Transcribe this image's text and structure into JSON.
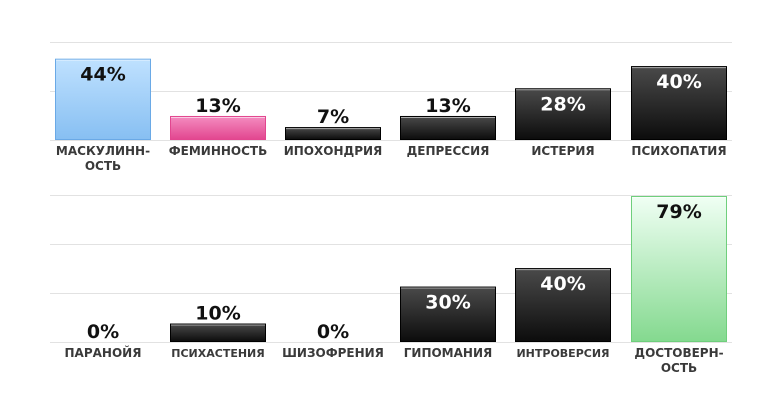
{
  "chart_data": [
    {
      "type": "bar",
      "categories": [
        "МАСКУЛИНН-\nОСТЬ",
        "ФЕМИННОСТЬ",
        "ИПОХОНДРИЯ",
        "ДЕПРЕССИЯ",
        "ИСТЕРИЯ",
        "ПСИХОПАТИЯ"
      ],
      "values": [
        44,
        13,
        7,
        13,
        28,
        40
      ],
      "value_labels": [
        "44%",
        "13%",
        "7%",
        "13%",
        "28%",
        "40%"
      ],
      "bar_styles": [
        "blue",
        "pink",
        "black",
        "black",
        "black",
        "black"
      ],
      "ylim": [
        0,
        100
      ],
      "grid": true
    },
    {
      "type": "bar",
      "categories": [
        "ПАРАНОЙЯ",
        "ПСИХАСТЕНИЯ",
        "ШИЗОФРЕНИЯ",
        "ГИПОМАНИЯ",
        "ИНТРОВЕРСИЯ",
        "ДОСТОВЕРН-\nОСТЬ"
      ],
      "values": [
        0,
        10,
        0,
        30,
        40,
        79
      ],
      "value_labels": [
        "0%",
        "10%",
        "0%",
        "30%",
        "40%",
        "79%"
      ],
      "bar_styles": [
        "black",
        "black",
        "black",
        "black",
        "black",
        "green"
      ],
      "ylim": [
        0,
        100
      ],
      "grid": true
    }
  ],
  "colors": {
    "blue_top": "#bfe1ff",
    "blue_bottom": "#87bff2",
    "blue_border": "#6aa9e6",
    "pink_top": "#f48cc0",
    "pink_bottom": "#e2468f",
    "black_top": "#4a4a4a",
    "black_bottom": "#0c0c0c",
    "green_top": "#f0fff4",
    "green_bottom": "#84d98f",
    "green_border": "#6fcf7c",
    "grid": "#e2e2e2",
    "label": "#3a3a3a"
  }
}
